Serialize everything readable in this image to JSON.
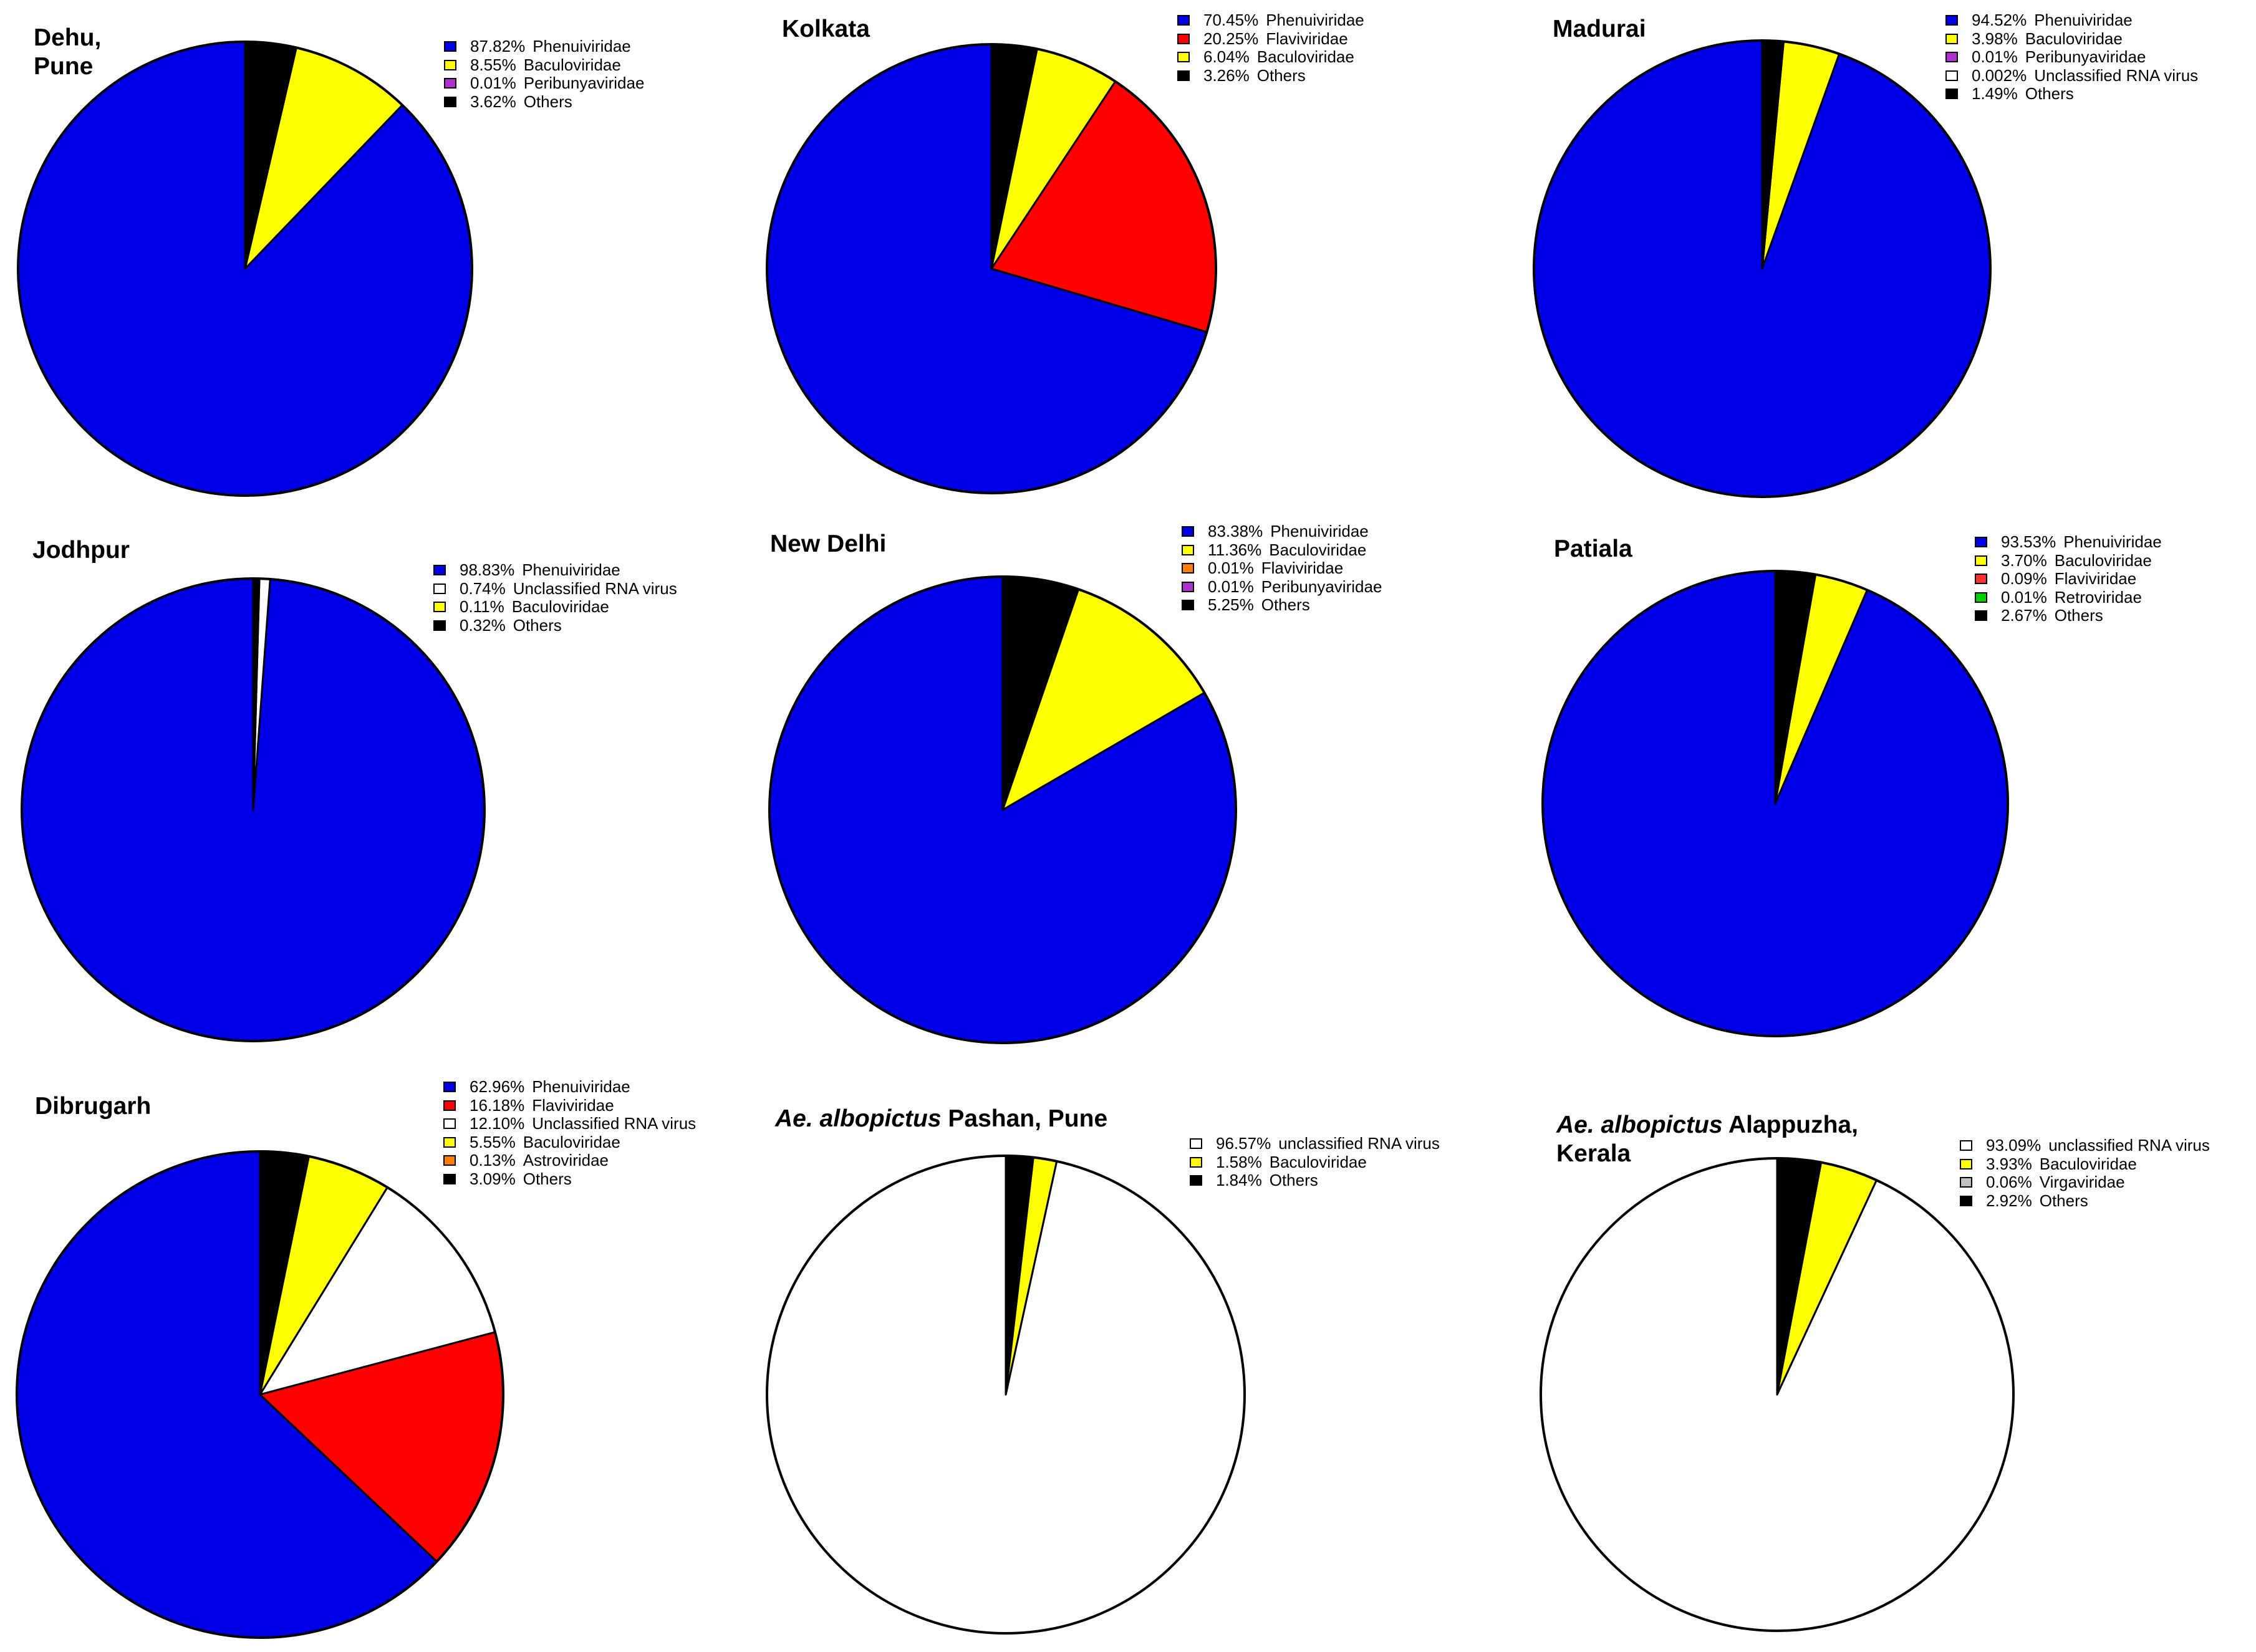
{
  "chart_data": [
    {
      "type": "pie",
      "title": [
        "Dehu,",
        "Pune"
      ],
      "labels": [
        "Phenuiviridae",
        "Baculoviridae",
        "Peribunyaviridae",
        "Others"
      ],
      "percent_labels": [
        "87.82%",
        "8.55%",
        "0.01%",
        "3.62%"
      ],
      "values": [
        87.82,
        8.55,
        0.01,
        3.62
      ],
      "colors": [
        "#0000e8",
        "#ffff00",
        "#b030d0",
        "#000000"
      ],
      "legend": "top-right"
    },
    {
      "type": "pie",
      "title": [
        "Kolkata"
      ],
      "labels": [
        "Phenuiviridae",
        "Flaviviridae",
        "Baculoviridae",
        "Others"
      ],
      "percent_labels": [
        "70.45%",
        "20.25%",
        "6.04%",
        "3.26%"
      ],
      "values": [
        70.45,
        20.25,
        6.04,
        3.26
      ],
      "colors": [
        "#0000e8",
        "#ff0000",
        "#ffff00",
        "#000000"
      ],
      "legend": "top-right"
    },
    {
      "type": "pie",
      "title": [
        "Madurai"
      ],
      "labels": [
        "Phenuiviridae",
        "Baculoviridae",
        "Peribunyaviridae",
        "Unclassified RNA virus",
        "Others"
      ],
      "percent_labels": [
        "94.52%",
        "3.98%",
        "0.01%",
        "0.002%",
        "1.49%"
      ],
      "values": [
        94.52,
        3.98,
        0.01,
        0.002,
        1.49
      ],
      "colors": [
        "#0000e8",
        "#ffff00",
        "#b030d0",
        "#ffffff",
        "#000000"
      ],
      "legend": "top-right"
    },
    {
      "type": "pie",
      "title": [
        "Jodhpur"
      ],
      "labels": [
        "Phenuiviridae",
        "Unclassified RNA virus",
        "Baculoviridae",
        "Others"
      ],
      "percent_labels": [
        "98.83%",
        "0.74%",
        "0.11%",
        "0.32%"
      ],
      "values": [
        98.83,
        0.74,
        0.11,
        0.32
      ],
      "colors": [
        "#0000e8",
        "#ffffff",
        "#ffff00",
        "#000000"
      ],
      "legend": "top-right"
    },
    {
      "type": "pie",
      "title": [
        "New Delhi"
      ],
      "labels": [
        "Phenuiviridae",
        "Baculoviridae",
        "Flaviviridae",
        "Peribunyaviridae",
        "Others"
      ],
      "percent_labels": [
        "83.38%",
        "11.36%",
        "0.01%",
        "0.01%",
        "5.25%"
      ],
      "values": [
        83.38,
        11.36,
        0.01,
        0.01,
        5.25
      ],
      "colors": [
        "#0000e8",
        "#ffff00",
        "#ff8000",
        "#b030d0",
        "#000000"
      ],
      "legend": "top-right"
    },
    {
      "type": "pie",
      "title": [
        "Patiala"
      ],
      "labels": [
        "Phenuiviridae",
        "Baculoviridae",
        "Flaviviridae",
        "Retroviridae",
        "Others"
      ],
      "percent_labels": [
        "93.53%",
        "3.70%",
        "0.09%",
        "0.01%",
        "2.67%"
      ],
      "values": [
        93.53,
        3.7,
        0.09,
        0.01,
        2.67
      ],
      "colors": [
        "#0000e8",
        "#ffff00",
        "#ff3030",
        "#00d000",
        "#000000"
      ],
      "legend": "top-right"
    },
    {
      "type": "pie",
      "title": [
        "Dibrugarh"
      ],
      "labels": [
        "Phenuiviridae",
        "Flaviviridae",
        "Unclassified RNA virus",
        "Baculoviridae",
        "Astroviridae",
        "Others"
      ],
      "percent_labels": [
        "62.96%",
        "16.18%",
        "12.10%",
        "5.55%",
        "0.13%",
        "3.09%"
      ],
      "values": [
        62.96,
        16.18,
        12.1,
        5.55,
        0.13,
        3.09
      ],
      "colors": [
        "#0000e8",
        "#ff0000",
        "#ffffff",
        "#ffff00",
        "#ff8000",
        "#000000"
      ],
      "legend": "top-right"
    },
    {
      "type": "pie",
      "title": [
        "Ae. albopictus Pashan, Pune"
      ],
      "title_italic": "Ae. albopictus",
      "title_rest": " Pashan, Pune",
      "labels": [
        "unclassified RNA virus",
        "Baculoviridae",
        "Others"
      ],
      "percent_labels": [
        "96.57%",
        "1.58%",
        "1.84%"
      ],
      "values": [
        96.57,
        1.58,
        1.84
      ],
      "colors": [
        "#ffffff",
        "#ffff00",
        "#000000"
      ],
      "legend": "top-right"
    },
    {
      "type": "pie",
      "title": [
        "Ae. albopictus Alappuzha,",
        "Kerala"
      ],
      "title_italic": "Ae. albopictus",
      "title_rest": " Alappuzha,",
      "title_line2": "Kerala",
      "labels": [
        "unclassified RNA virus",
        "Baculoviridae",
        "Virgaviridae",
        "Others"
      ],
      "percent_labels": [
        "93.09%",
        "3.93%",
        "0.06%",
        "2.92%"
      ],
      "values": [
        93.09,
        3.93,
        0.06,
        2.92
      ],
      "colors": [
        "#ffffff",
        "#ffff00",
        "#c0c0c0",
        "#000000"
      ],
      "legend": "top-right"
    }
  ]
}
